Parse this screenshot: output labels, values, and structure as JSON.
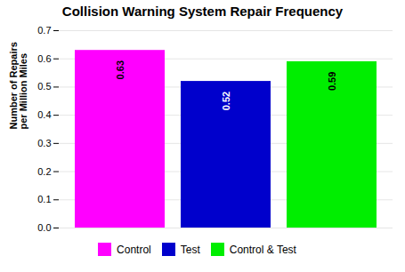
{
  "chart_data": {
    "type": "bar",
    "title": "Collision Warning System Repair Frequency",
    "categories": [
      "Control",
      "Test",
      "Control & Test"
    ],
    "values": [
      0.63,
      0.52,
      0.59
    ],
    "colors": [
      "#FF00FF",
      "#0000CC",
      "#00EE00"
    ],
    "ylabel": "Number of Repairs\nper Million Miles",
    "ylim": [
      0.0,
      0.7
    ],
    "yticks": [
      {
        "value": 0.0,
        "label": "0.0"
      },
      0.1,
      0.2,
      0.3,
      0.4,
      0.5,
      0.6,
      0.7
    ],
    "grid": true,
    "legend": "bottom",
    "data_labels": true,
    "tick_labels": "y"
  }
}
